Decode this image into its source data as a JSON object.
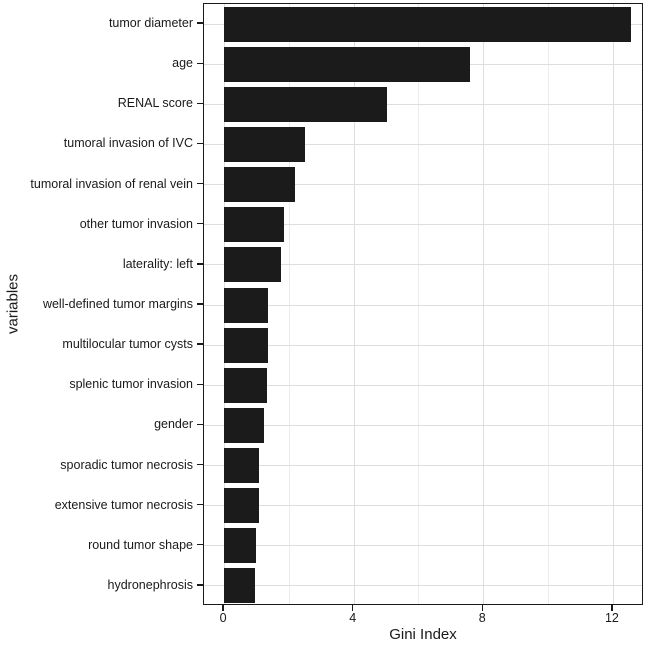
{
  "chart_data": {
    "type": "bar",
    "orientation": "horizontal",
    "title": "",
    "xlabel": "Gini Index",
    "ylabel": "variables",
    "categories": [
      "tumor diameter",
      "age",
      "RENAL score",
      "tumoral invasion of IVC",
      "tumoral invasion of renal vein",
      "other tumor invasion",
      "laterality: left",
      "well-defined tumor margins",
      "multilocular tumor cysts",
      "splenic tumor invasion",
      "gender",
      "sporadic tumor necrosis",
      "extensive tumor necrosis",
      "round tumor shape",
      "hydronephrosis"
    ],
    "values": [
      12.55,
      7.6,
      5.03,
      2.5,
      2.2,
      1.84,
      1.76,
      1.36,
      1.35,
      1.32,
      1.24,
      1.08,
      1.07,
      1.0,
      0.95
    ],
    "x_ticks": [
      0,
      4,
      8,
      12
    ],
    "x_tick_labels": [
      "0",
      "4",
      "8",
      "12"
    ],
    "x_minor_ticks": [
      2,
      6,
      10
    ],
    "xlim": [
      -0.62,
      12.96
    ],
    "grid": true,
    "legend_position": "none",
    "colors": {
      "bar_fill": "#1b1b1b",
      "panel_border": "#1a1a1a",
      "grid_major": "#dedede",
      "grid_minor": "#ececec",
      "text": "#1a1a1a",
      "background": "#ffffff"
    }
  }
}
